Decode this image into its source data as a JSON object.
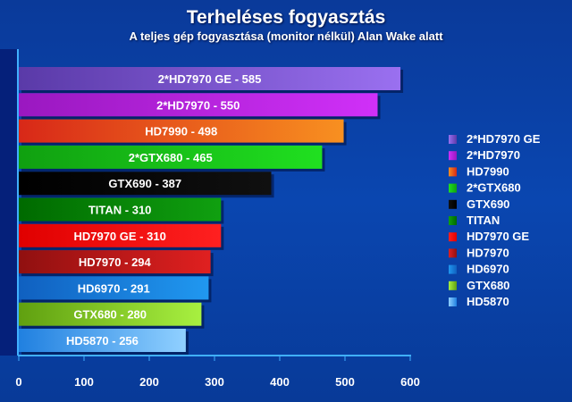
{
  "chart_data": {
    "type": "bar",
    "orientation": "horizontal",
    "title": "Terheléses fogyasztás",
    "subtitle": "A teljes gép fogyasztása (monitor nélkül) Alan Wake alatt",
    "categories": [
      "2*HD7970 GE",
      "2*HD7970",
      "HD7990",
      "2*GTX680",
      "GTX690",
      "TITAN",
      "HD7970 GE",
      "HD7970",
      "HD6970",
      "GTX680",
      "HD5870"
    ],
    "values": [
      585,
      550,
      498,
      465,
      387,
      310,
      310,
      294,
      291,
      280,
      256
    ],
    "bar_labels": [
      "2*HD7970 GE - 585",
      "2*HD7970 - 550",
      "HD7990 - 498",
      "2*GTX680 - 465",
      "GTX690 - 387",
      "TITAN - 310",
      "HD7970 GE - 310",
      "HD7970 - 294",
      "HD6970 - 291",
      "GTX680 - 280",
      "HD5870 - 256"
    ],
    "colors": [
      [
        "#5a3aa8",
        "#9a70f0"
      ],
      [
        "#9a18c0",
        "#d030f8"
      ],
      [
        "#d82818",
        "#f89020"
      ],
      [
        "#10a010",
        "#20e020"
      ],
      [
        "#000000",
        "#101010"
      ],
      [
        "#006a00",
        "#10a010"
      ],
      [
        "#e00000",
        "#ff2020"
      ],
      [
        "#901010",
        "#e02020"
      ],
      [
        "#1060c0",
        "#2098f0"
      ],
      [
        "#60a010",
        "#a8f040"
      ],
      [
        "#2080e0",
        "#90d0ff"
      ]
    ],
    "xlim": [
      0,
      600
    ],
    "xticks": [
      "0",
      "100",
      "200",
      "300",
      "400",
      "500",
      "600"
    ],
    "legend": "right",
    "grid": false
  }
}
